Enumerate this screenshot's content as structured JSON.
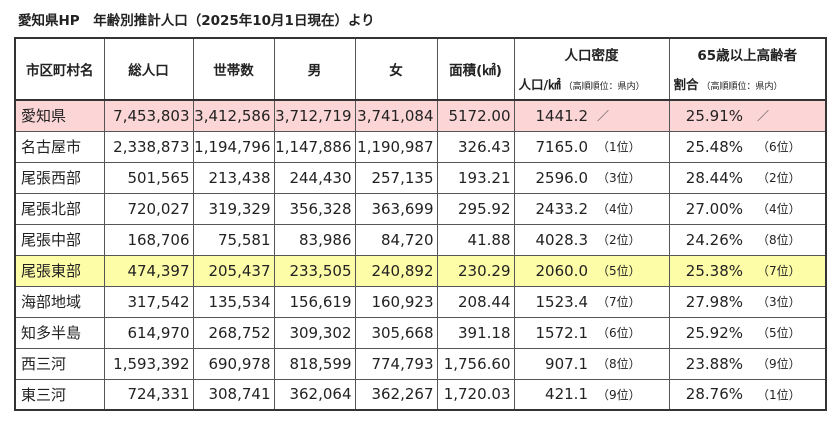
{
  "title": "愛知県HP　年齢別推計人口（2025年10月1日現在）より",
  "headers": {
    "area": "市区町村名",
    "population": "総人口",
    "households": "世帯数",
    "male": "男",
    "female": "女",
    "area_size": "面積(㎢)",
    "density_group": "人口密度",
    "density_sub": "人口/㎢",
    "density_rank_note": "（高順順位：県内）",
    "elderly_group": "65歳以上高齢者",
    "elderly_sub": "割合",
    "elderly_rank_note": "（高順順位：県内）"
  },
  "rows": [
    {
      "name": "愛知県",
      "population": "7,453,803",
      "households": "3,412,586",
      "male": "3,712,719",
      "female": "3,741,084",
      "area": "5172.00",
      "density": "1441.2",
      "density_rank": "／",
      "elderly": "25.91%",
      "elderly_rank": "／",
      "style": "pref"
    },
    {
      "name": "名古屋市",
      "population": "2,338,873",
      "households": "1,194,796",
      "male": "1,147,886",
      "female": "1,190,987",
      "area": "326.43",
      "density": "7165.0",
      "density_rank": "（1位）",
      "elderly": "25.48%",
      "elderly_rank": "（6位）",
      "style": ""
    },
    {
      "name": "尾張西部",
      "population": "501,565",
      "households": "213,438",
      "male": "244,430",
      "female": "257,135",
      "area": "193.21",
      "density": "2596.0",
      "density_rank": "（3位）",
      "elderly": "28.44%",
      "elderly_rank": "（2位）",
      "style": ""
    },
    {
      "name": "尾張北部",
      "population": "720,027",
      "households": "319,329",
      "male": "356,328",
      "female": "363,699",
      "area": "295.92",
      "density": "2433.2",
      "density_rank": "（4位）",
      "elderly": "27.00%",
      "elderly_rank": "（4位）",
      "style": ""
    },
    {
      "name": "尾張中部",
      "population": "168,706",
      "households": "75,581",
      "male": "83,986",
      "female": "84,720",
      "area": "41.88",
      "density": "4028.3",
      "density_rank": "（2位）",
      "elderly": "24.26%",
      "elderly_rank": "（8位）",
      "style": ""
    },
    {
      "name": "尾張東部",
      "population": "474,397",
      "households": "205,437",
      "male": "233,505",
      "female": "240,892",
      "area": "230.29",
      "density": "2060.0",
      "density_rank": "（5位）",
      "elderly": "25.38%",
      "elderly_rank": "（7位）",
      "style": "hl"
    },
    {
      "name": "海部地域",
      "population": "317,542",
      "households": "135,534",
      "male": "156,619",
      "female": "160,923",
      "area": "208.44",
      "density": "1523.4",
      "density_rank": "（7位）",
      "elderly": "27.98%",
      "elderly_rank": "（3位）",
      "style": ""
    },
    {
      "name": "知多半島",
      "population": "614,970",
      "households": "268,752",
      "male": "309,302",
      "female": "305,668",
      "area": "391.18",
      "density": "1572.1",
      "density_rank": "（6位）",
      "elderly": "25.92%",
      "elderly_rank": "（5位）",
      "style": ""
    },
    {
      "name": "西三河",
      "population": "1,593,392",
      "households": "690,978",
      "male": "818,599",
      "female": "774,793",
      "area": "1,756.60",
      "density": "907.1",
      "density_rank": "（8位）",
      "elderly": "23.88%",
      "elderly_rank": "（9位）",
      "style": ""
    },
    {
      "name": "東三河",
      "population": "724,331",
      "households": "308,741",
      "male": "362,064",
      "female": "362,267",
      "area": "1,720.03",
      "density": "421.1",
      "density_rank": "（9位）",
      "elderly": "28.76%",
      "elderly_rank": "（1位）",
      "style": ""
    }
  ]
}
